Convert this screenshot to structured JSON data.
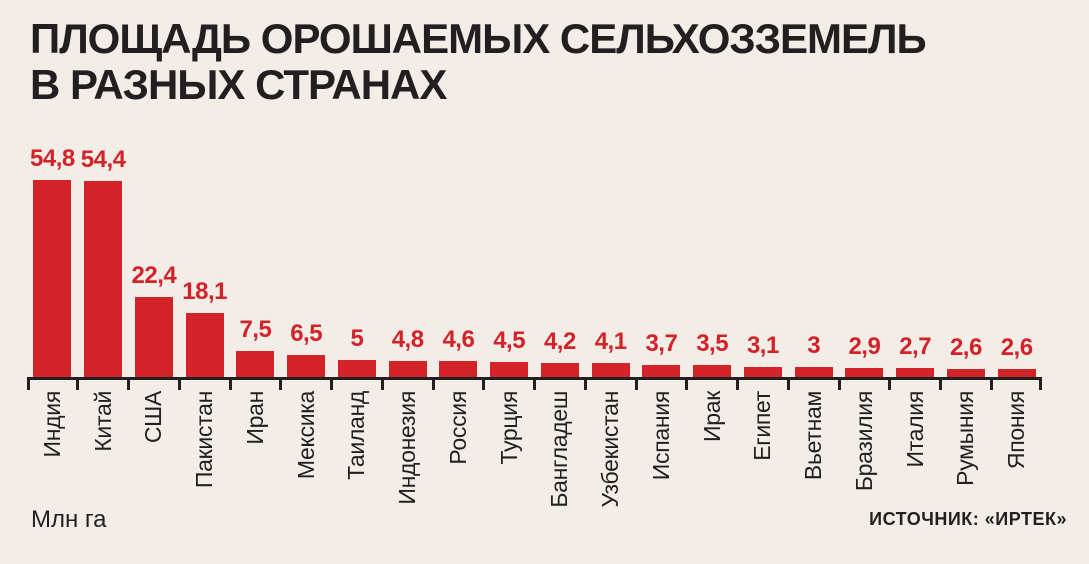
{
  "header": {
    "title_line1": "ПЛОЩАДЬ ОРОШАЕМЫХ СЕЛЬХОЗЗЕМЕЛЬ",
    "title_line2": "В РАЗНЫХ СТРАНАХ"
  },
  "footer": {
    "unit_label": "Млн га",
    "source": "ИСТОЧНИК: «ИРТЕК»"
  },
  "colors": {
    "background": "#f2ede7",
    "bar_red": "#d42229",
    "text_dark": "#231f20"
  },
  "chart_data": {
    "type": "bar",
    "title": "ПЛОЩАДЬ ОРОШАЕМЫХ СЕЛЬХОЗЗЕМЕЛЬ В РАЗНЫХ СТРАНАХ",
    "categories": [
      "Индия",
      "Китай",
      "США",
      "Пакистан",
      "Иран",
      "Мексика",
      "Таиланд",
      "Индонезия",
      "Россия",
      "Турция",
      "Бангладеш",
      "Узбекистан",
      "Испания",
      "Ирак",
      "Египет",
      "Вьетнам",
      "Бразилия",
      "Италия",
      "Румыния",
      "Япония"
    ],
    "values": [
      54.8,
      54.4,
      22.4,
      18.1,
      7.5,
      6.5,
      5,
      4.8,
      4.6,
      4.5,
      4.2,
      4.1,
      3.7,
      3.5,
      3.1,
      3,
      2.9,
      2.7,
      2.6,
      2.6
    ],
    "value_labels": [
      "54,8",
      "54,4",
      "22,4",
      "18,1",
      "7,5",
      "6,5",
      "5",
      "4,8",
      "4,6",
      "4,5",
      "4,2",
      "4,1",
      "3,7",
      "3,5",
      "3,1",
      "3",
      "2,9",
      "2,7",
      "2,6",
      "2,6"
    ],
    "ylabel": "Млн га",
    "ylim": [
      0,
      60
    ],
    "grid": false,
    "legend": "none",
    "bar_color": "#d42229",
    "value_label_color": "#d42229",
    "category_label_rotation_deg": -90
  }
}
